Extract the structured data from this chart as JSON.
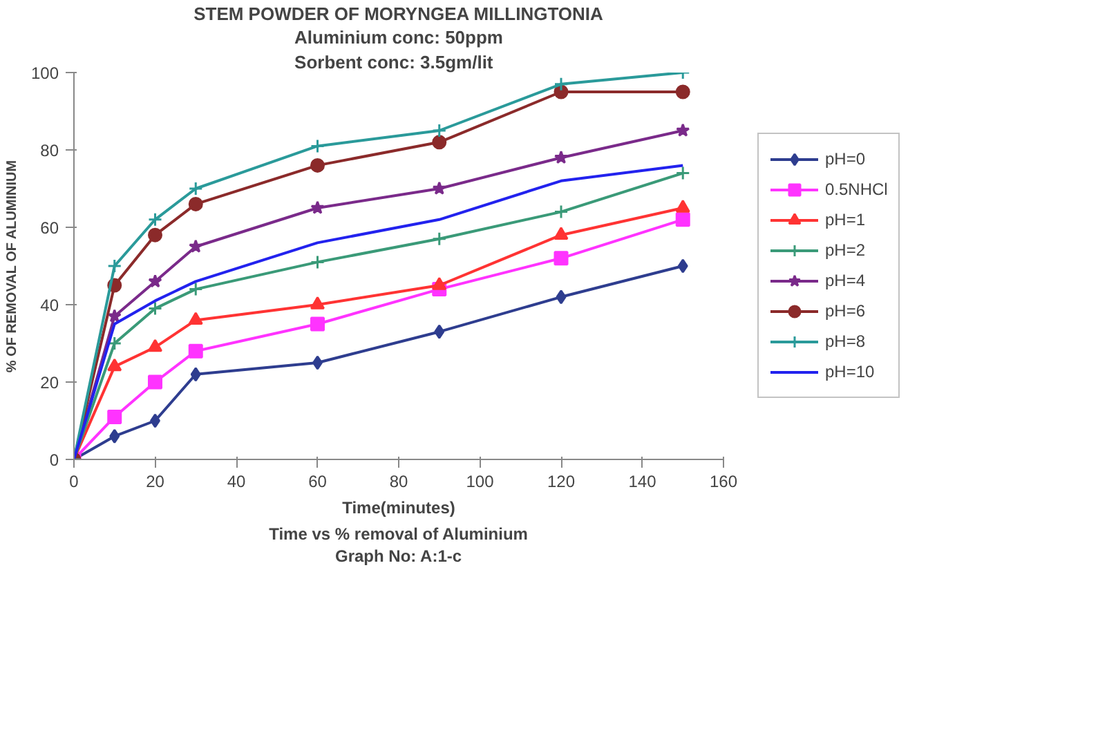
{
  "chart_data": {
    "type": "line",
    "title": "STEM POWDER OF MORYNGEA MILLINGTONIA",
    "subtitle": "Aluminium conc: 50ppm\nSorbent conc: 3.5gm/lit",
    "xlabel": "Time(minutes)",
    "ylabel": "% OF REMOVAL OF ALUMINIUM",
    "annotations": [
      "Time vs % removal of Aluminium",
      "Graph No: A:1-c"
    ],
    "x": [
      0,
      10,
      20,
      30,
      60,
      90,
      120,
      150
    ],
    "series": [
      {
        "name": "pH=0",
        "color": "#2e3d8f",
        "marker": "diamond",
        "values": [
          0,
          6,
          10,
          22,
          25,
          33,
          42,
          50
        ]
      },
      {
        "name": "0.5NHCl",
        "color": "#ff33ff",
        "marker": "square",
        "values": [
          0,
          11,
          20,
          28,
          35,
          44,
          52,
          62
        ]
      },
      {
        "name": "pH=1",
        "color": "#ff3333",
        "marker": "triangle",
        "values": [
          0,
          24,
          29,
          36,
          40,
          45,
          58,
          65
        ]
      },
      {
        "name": "pH=2",
        "color": "#3a9a78",
        "marker": "cross",
        "values": [
          0,
          30,
          39,
          44,
          51,
          57,
          64,
          74
        ]
      },
      {
        "name": "pH=4",
        "color": "#7a2a8a",
        "marker": "star",
        "values": [
          0,
          37,
          46,
          55,
          65,
          70,
          78,
          85
        ]
      },
      {
        "name": "pH=6",
        "color": "#8b2a2a",
        "marker": "circle",
        "values": [
          0,
          45,
          58,
          66,
          76,
          82,
          95,
          95
        ]
      },
      {
        "name": "pH=8",
        "color": "#2a9a9a",
        "marker": "cross",
        "values": [
          0,
          50,
          62,
          70,
          81,
          85,
          97,
          100
        ]
      },
      {
        "name": "pH=10",
        "color": "#2222ee",
        "marker": "none",
        "values": [
          0,
          35,
          41,
          46,
          56,
          62,
          72,
          76
        ]
      }
    ],
    "xlim": [
      0,
      160
    ],
    "xticks": [
      0,
      20,
      40,
      60,
      80,
      100,
      120,
      140,
      160
    ],
    "ylim": [
      0,
      100
    ],
    "yticks": [
      0,
      20,
      40,
      60,
      80,
      100
    ],
    "grid": false,
    "legend": "right",
    "line_style": "solid"
  }
}
